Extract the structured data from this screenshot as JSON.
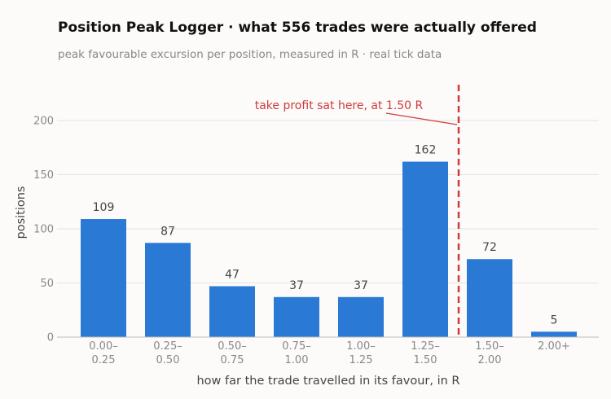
{
  "header": {
    "title": "Position Peak Logger  ·  what 556 trades were actually offered",
    "subtitle": "peak favourable excursion per position, measured in R  ·  real tick data"
  },
  "chart_data": {
    "type": "bar",
    "categories": [
      [
        "0.00–",
        "0.25"
      ],
      [
        "0.25–",
        "0.50"
      ],
      [
        "0.50–",
        "0.75"
      ],
      [
        "0.75–",
        "1.00"
      ],
      [
        "1.00–",
        "1.25"
      ],
      [
        "1.25–",
        "1.50"
      ],
      [
        "1.50–",
        "2.00"
      ],
      [
        "2.00+"
      ]
    ],
    "values": [
      109,
      87,
      47,
      37,
      37,
      162,
      72,
      5
    ],
    "xlabel": "how far the trade travelled in its favour, in R",
    "ylabel": "positions",
    "ylim": [
      0,
      230
    ],
    "yticks": [
      0,
      50,
      100,
      150,
      200
    ],
    "grid": true,
    "bar_color": "#2a7ad5",
    "reference_line": {
      "label": "take profit sat here, at 1.50 R",
      "position_between_categories": [
        5,
        6
      ],
      "color": "#d03a3a",
      "style": "dashed"
    }
  }
}
